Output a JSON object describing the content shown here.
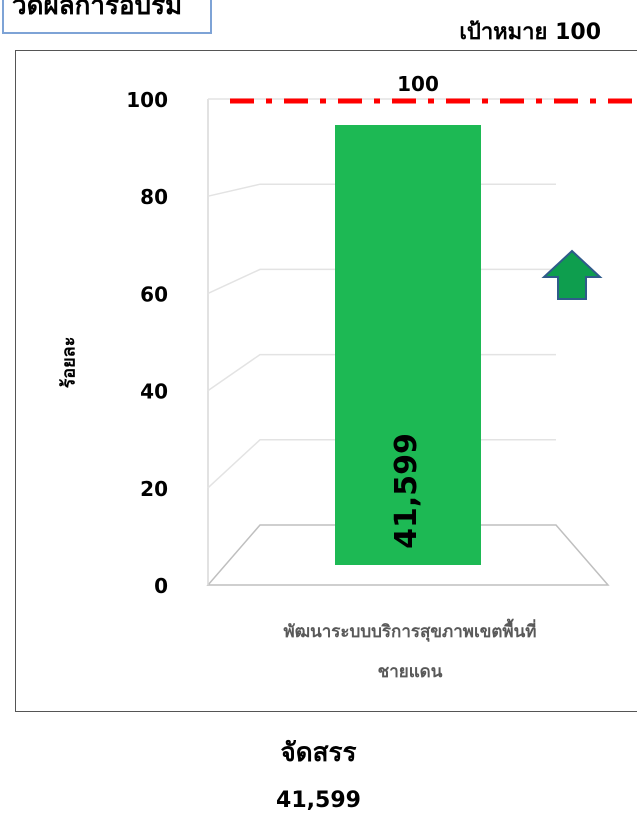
{
  "header": {
    "box_text": "วัดผลการอบรม",
    "target_text": "เป้าหมาย 100"
  },
  "chart_data": {
    "type": "bar",
    "categories": [
      "พัฒนาระบบบริการสุขภาพเขตพื้นที่ชายแดน"
    ],
    "category_lines": [
      "พัฒนาระบบบริการสุขภาพเขตพื้นที่",
      "ชายแดน"
    ],
    "values": [
      100
    ],
    "bar_inner_label": "41,599",
    "target_line": 100,
    "ylabel": "ร้อยละ",
    "ylim": [
      0,
      100
    ],
    "yticks": [
      0,
      20,
      40,
      60,
      80,
      100
    ],
    "grid": true,
    "colors": {
      "bar": "#1db954",
      "target_line": "#ff0000",
      "arrow": "#0e9e4e",
      "arrow_outline": "#2f5b8a"
    },
    "annotations": [
      "trend-up-arrow"
    ]
  },
  "footer": {
    "allocation_label": "จัดสรร",
    "allocation_value": "41,599"
  }
}
